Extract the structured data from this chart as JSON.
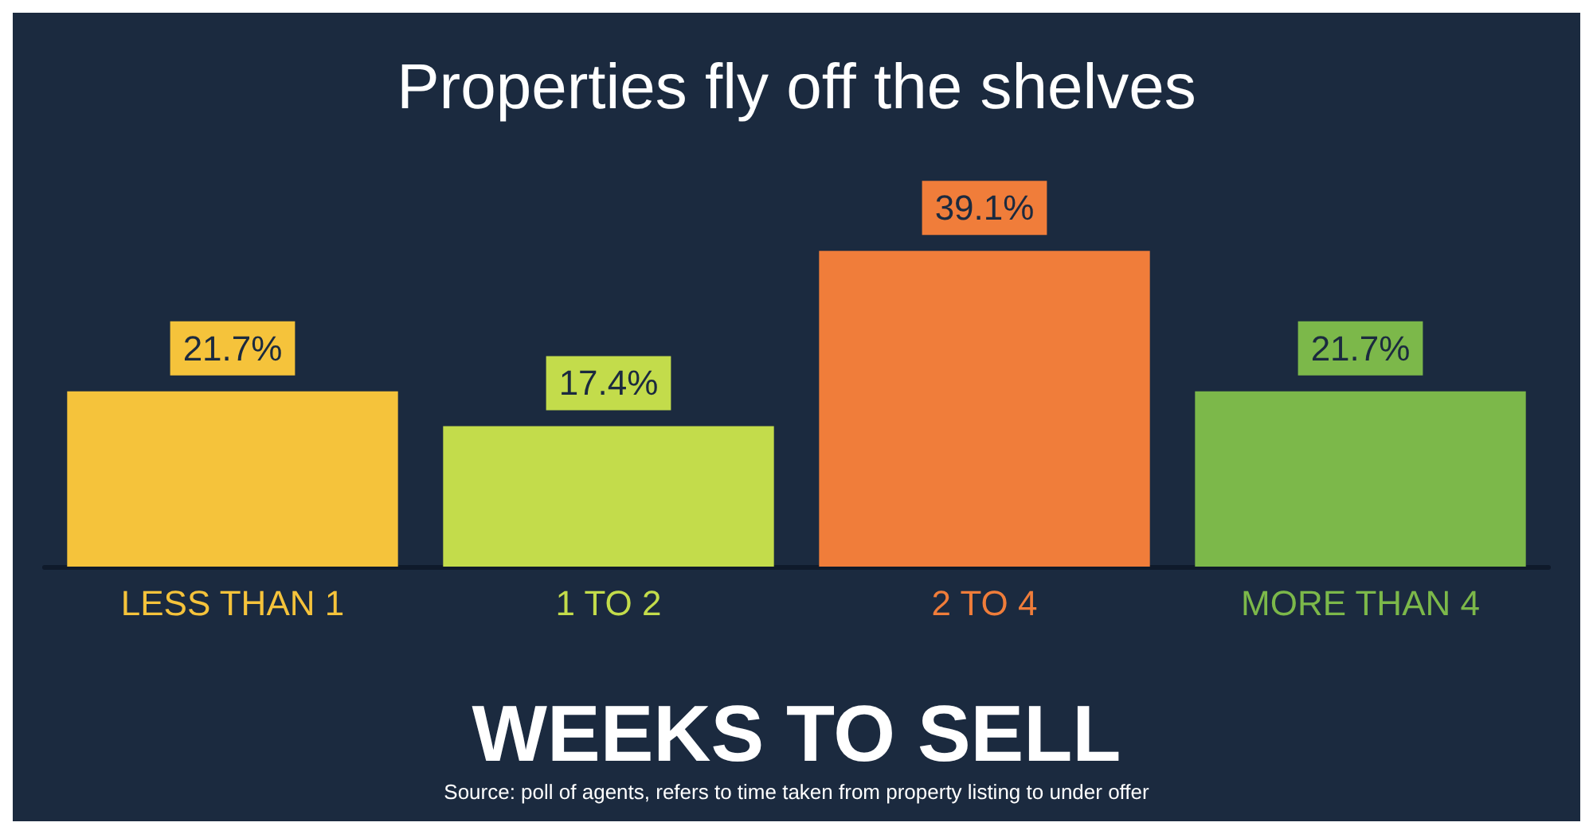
{
  "chart_data": {
    "type": "bar",
    "title": "Properties fly off the shelves",
    "xlabel": "WEEKS TO SELL",
    "categories": [
      "LESS THAN 1",
      "1 TO 2",
      "2 TO 4",
      "MORE THAN 4"
    ],
    "values": [
      21.7,
      17.4,
      39.1,
      21.7
    ],
    "colors": [
      "#f5c33b",
      "#c3dc4b",
      "#f07d3a",
      "#7cb84a"
    ],
    "value_labels": [
      "21.7%",
      "17.4%",
      "39.1%",
      "21.7%"
    ],
    "annotations": [
      "Source: poll of agents, refers to time taken from property listing to under offer"
    ]
  }
}
